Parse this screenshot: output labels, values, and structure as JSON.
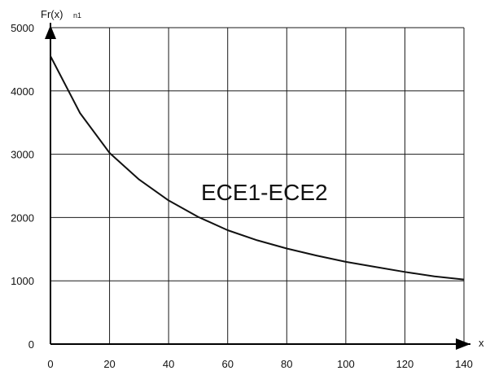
{
  "chart_data": {
    "type": "line",
    "title": "",
    "ylabel": "Fr(x)",
    "ylabel_subscript": "n1",
    "xlabel": "x",
    "xlim": [
      0,
      140
    ],
    "ylim": [
      0,
      5000
    ],
    "x_ticks": [
      0,
      20,
      40,
      60,
      80,
      100,
      120,
      140
    ],
    "y_ticks": [
      0,
      1000,
      2000,
      3000,
      4000,
      5000
    ],
    "grid": true,
    "annotation": "ECE1-ECE2",
    "series": [
      {
        "x": [
          0,
          10,
          20,
          30,
          40,
          50,
          60,
          70,
          80,
          90,
          100,
          110,
          120,
          130,
          140
        ],
        "y": [
          4550,
          3650,
          3020,
          2600,
          2270,
          2010,
          1800,
          1640,
          1510,
          1400,
          1300,
          1220,
          1140,
          1070,
          1020
        ]
      }
    ],
    "colors": {
      "line": "#111111",
      "grid": "#1a1a1a",
      "axis": "#000000"
    }
  }
}
